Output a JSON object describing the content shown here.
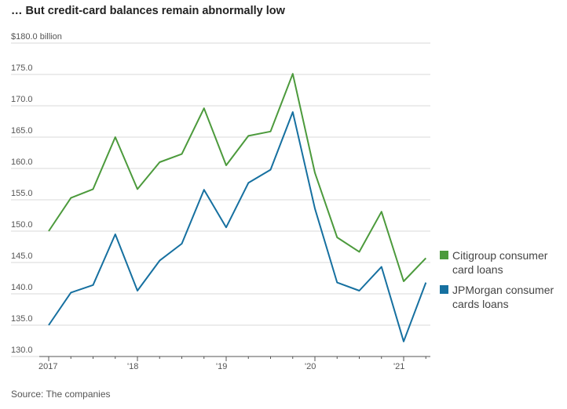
{
  "chart_data": {
    "type": "line",
    "title": "… But credit-card balances remain abnormally low",
    "source": "Source: The companies",
    "x_tick_labels": [
      "2017",
      "'18",
      "'19",
      "'20",
      "'21"
    ],
    "x_start_year": 2017,
    "y_ticks": [
      "$180.0 billion",
      "175.0",
      "170.0",
      "165.0",
      "160.0",
      "155.0",
      "150.0",
      "145.0",
      "140.0",
      "135.0",
      "130.0"
    ],
    "ylim": [
      130,
      180
    ],
    "grid": true,
    "legend_position": "right",
    "x_quarters": [
      "Q1 2017",
      "Q2 2017",
      "Q3 2017",
      "Q4 2017",
      "Q1 2018",
      "Q2 2018",
      "Q3 2018",
      "Q4 2018",
      "Q1 2019",
      "Q2 2019",
      "Q3 2019",
      "Q4 2019",
      "Q1 2020",
      "Q2 2020",
      "Q3 2020",
      "Q4 2020",
      "Q1 2021",
      "Q2 2021"
    ],
    "series": [
      {
        "name": "Citigroup consumer card loans",
        "color": "#4c9a3c",
        "values": [
          150.0,
          155.3,
          156.7,
          165.0,
          156.7,
          161.0,
          162.3,
          169.6,
          160.5,
          165.2,
          165.9,
          175.1,
          159.3,
          149.0,
          146.7,
          153.1,
          142.0,
          145.7
        ]
      },
      {
        "name": "JPMorgan consumer cards loans",
        "color": "#1670a0",
        "values": [
          135.0,
          140.2,
          141.4,
          149.5,
          140.5,
          145.3,
          148.0,
          156.6,
          150.6,
          157.7,
          159.8,
          169.0,
          153.6,
          141.8,
          140.5,
          144.3,
          132.4,
          141.8
        ]
      }
    ]
  }
}
